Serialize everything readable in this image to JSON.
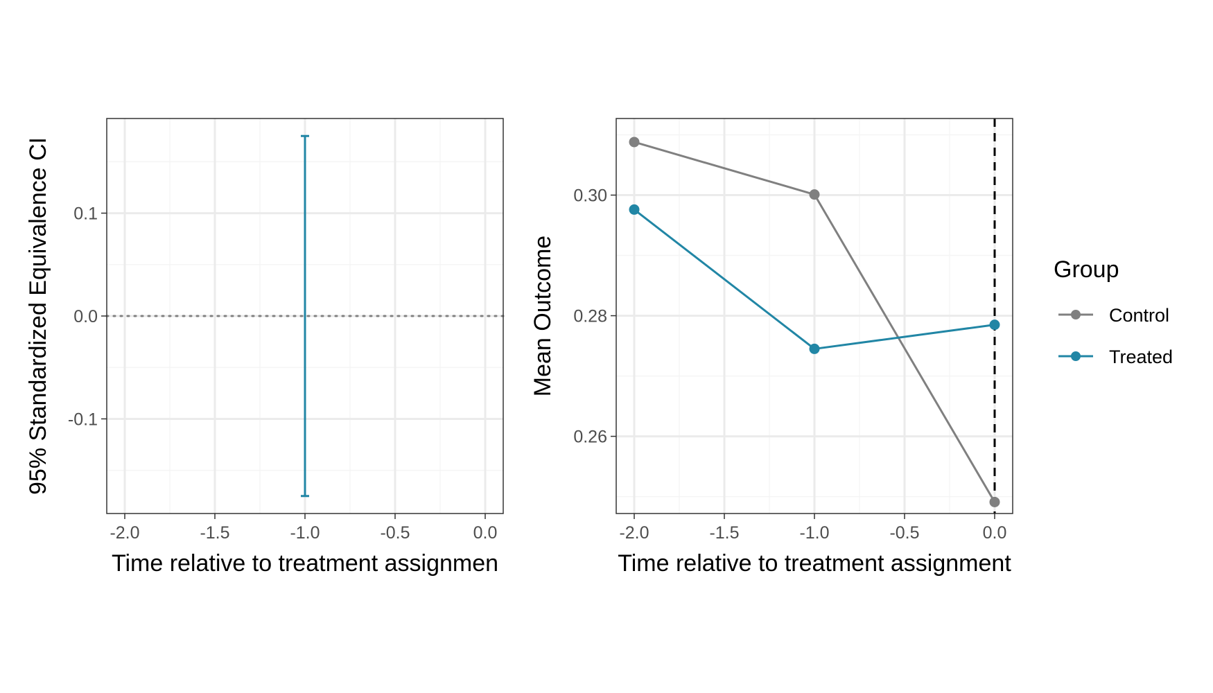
{
  "colors": {
    "control": "#808080",
    "treated": "#2186a5",
    "grid_major": "#ebebeb",
    "grid_minor": "#f5f5f5",
    "panel_border": "#333333",
    "tick_text": "#4d4d4d"
  },
  "chart_data": [
    {
      "type": "errorbar",
      "xlabel": "Time relative to treatment assignmen",
      "ylabel": "95% Standardized Equivalence CI",
      "xlim": [
        -2.1,
        0.1
      ],
      "ylim": [
        -0.192,
        0.192
      ],
      "x_ticks": [
        -2.0,
        -1.5,
        -1.0,
        -0.5,
        0.0
      ],
      "x_tick_labels": [
        "-2.0",
        "-1.5",
        "-1.0",
        "-0.5",
        "0.0"
      ],
      "y_ticks": [
        -0.1,
        0.0,
        0.1
      ],
      "y_tick_labels": [
        "-0.1",
        "0.0",
        "0.1"
      ],
      "grid": true,
      "reference_hline": {
        "y": 0.0,
        "style": "dotted"
      },
      "intervals": [
        {
          "x": -1.0,
          "lower": -0.175,
          "upper": 0.175
        }
      ]
    },
    {
      "type": "line",
      "xlabel": "Time relative to treatment assignment",
      "ylabel": "Mean Outcome",
      "xlim": [
        -2.1,
        0.1
      ],
      "ylim": [
        0.2472,
        0.3127
      ],
      "x_ticks": [
        -2.0,
        -1.5,
        -1.0,
        -0.5,
        0.0
      ],
      "x_tick_labels": [
        "-2.0",
        "-1.5",
        "-1.0",
        "-0.5",
        "0.0"
      ],
      "y_ticks": [
        0.26,
        0.28,
        0.3
      ],
      "y_tick_labels": [
        "0.26",
        "0.28",
        "0.30"
      ],
      "grid": true,
      "reference_vline": {
        "x": 0.0,
        "style": "dashed"
      },
      "x": [
        -2.0,
        -1.0,
        0.0
      ],
      "series": [
        {
          "name": "Control",
          "values": [
            0.3088,
            0.3001,
            0.2491
          ]
        },
        {
          "name": "Treated",
          "values": [
            0.2976,
            0.2745,
            0.2785
          ]
        }
      ],
      "legend": {
        "title": "Group",
        "placement": "right"
      }
    }
  ]
}
